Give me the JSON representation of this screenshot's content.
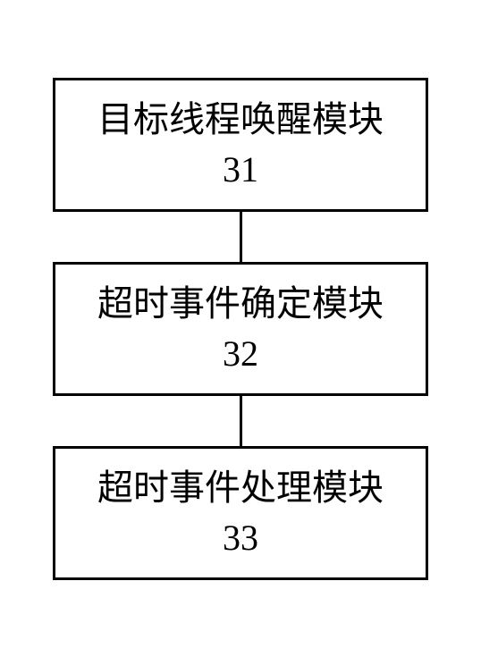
{
  "diagram": {
    "type": "flowchart",
    "background_color": "#ffffff",
    "border_color": "#000000",
    "border_width": 3,
    "text_color": "#000000",
    "font_size": 40,
    "font_family": "SimSun",
    "box_min_width": 420,
    "connector_height": 56,
    "connector_width": 3,
    "nodes": [
      {
        "id": "module-31",
        "label": "目标线程唤醒模块",
        "number": "31"
      },
      {
        "id": "module-32",
        "label": "超时事件确定模块",
        "number": "32"
      },
      {
        "id": "module-33",
        "label": "超时事件处理模块",
        "number": "33"
      }
    ],
    "edges": [
      {
        "from": "module-31",
        "to": "module-32"
      },
      {
        "from": "module-32",
        "to": "module-33"
      }
    ]
  }
}
